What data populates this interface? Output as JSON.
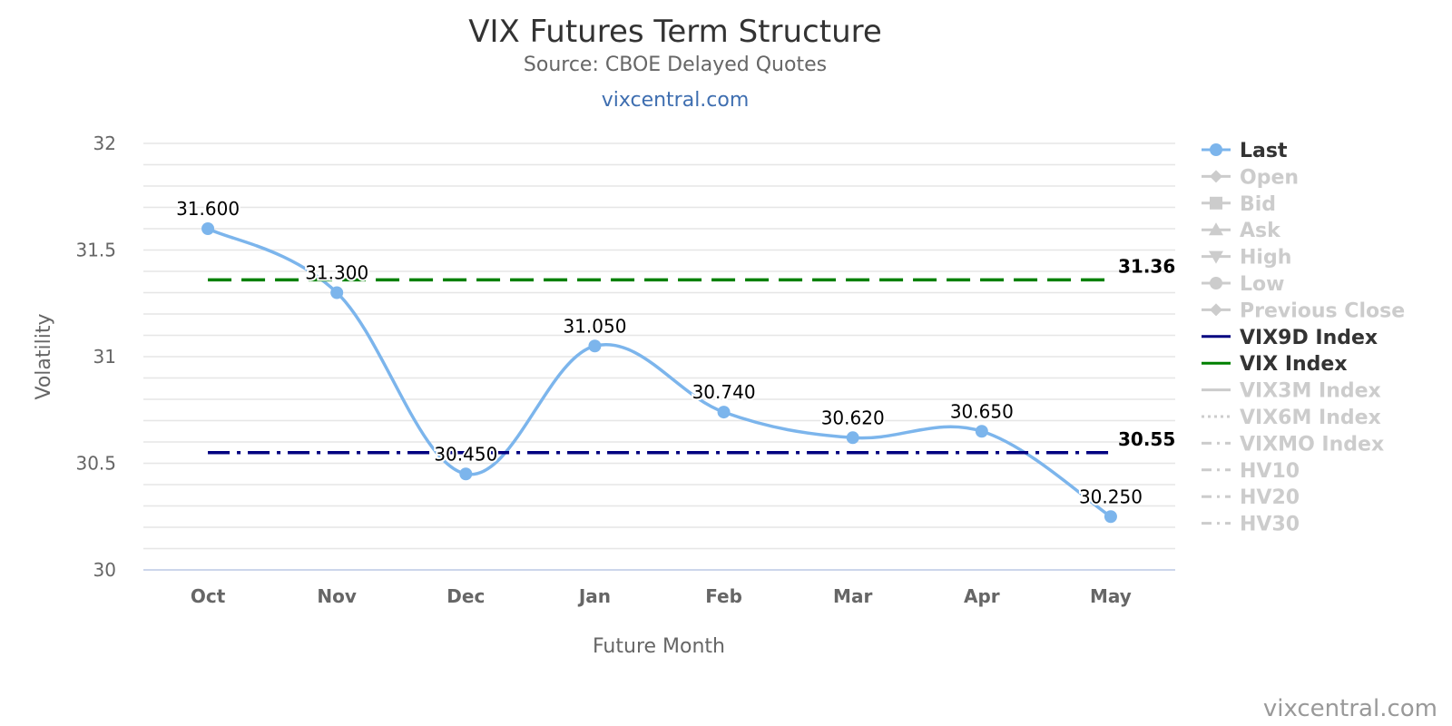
{
  "chart_data": {
    "type": "line",
    "title": "VIX Futures Term Structure",
    "subtitle": "Source: CBOE Delayed Quotes",
    "link_text": "vixcentral.com",
    "credit": "vixcentral.com",
    "xlabel": "Future Month",
    "ylabel": "Volatility",
    "ylim": [
      30,
      32
    ],
    "yticks": [
      "30",
      "30.5",
      "31",
      "31.5",
      "32"
    ],
    "categories": [
      "Oct",
      "Nov",
      "Dec",
      "Jan",
      "Feb",
      "Mar",
      "Apr",
      "May"
    ],
    "grid": true,
    "legend_position": "right",
    "series": [
      {
        "name": "Last",
        "color": "#7cb5ec",
        "style": "smooth-line-markers",
        "values": [
          31.6,
          31.3,
          30.45,
          31.05,
          30.74,
          30.62,
          30.65,
          30.25
        ],
        "labels": [
          "31.600",
          "31.300",
          "30.450",
          "31.050",
          "30.740",
          "30.620",
          "30.650",
          "30.250"
        ]
      },
      {
        "name": "VIX Index",
        "color": "#008000",
        "style": "dashed",
        "value": 31.36,
        "label": "31.36"
      },
      {
        "name": "VIX9D Index",
        "color": "#000080",
        "style": "dash-dot",
        "value": 30.55,
        "label": "30.55"
      }
    ],
    "legend": [
      {
        "name": "Last",
        "active": true,
        "symbol": "circle-line"
      },
      {
        "name": "Open",
        "active": false,
        "symbol": "diamond-line"
      },
      {
        "name": "Bid",
        "active": false,
        "symbol": "square-line"
      },
      {
        "name": "Ask",
        "active": false,
        "symbol": "triangle-line"
      },
      {
        "name": "High",
        "active": false,
        "symbol": "triangle-down-line"
      },
      {
        "name": "Low",
        "active": false,
        "symbol": "circle-line"
      },
      {
        "name": "Previous Close",
        "active": false,
        "symbol": "diamond-line"
      },
      {
        "name": "VIX9D Index",
        "active": true,
        "symbol": "line",
        "color": "#000080"
      },
      {
        "name": "VIX Index",
        "active": true,
        "symbol": "line",
        "color": "#008000"
      },
      {
        "name": "VIX3M Index",
        "active": false,
        "symbol": "line"
      },
      {
        "name": "VIX6M Index",
        "active": false,
        "symbol": "dotted"
      },
      {
        "name": "VIXMO Index",
        "active": false,
        "symbol": "dash-dot"
      },
      {
        "name": "HV10",
        "active": false,
        "symbol": "dash-dot"
      },
      {
        "name": "HV20",
        "active": false,
        "symbol": "dash-dot"
      },
      {
        "name": "HV30",
        "active": false,
        "symbol": "dash-dot"
      }
    ]
  },
  "colors": {
    "title": "#333333",
    "subtitle": "#666666",
    "link": "#3e6eb0",
    "axis_text": "#666666",
    "grid": "#e6e6e6",
    "legend_active": "#333333",
    "legend_inactive": "#cccccc"
  }
}
